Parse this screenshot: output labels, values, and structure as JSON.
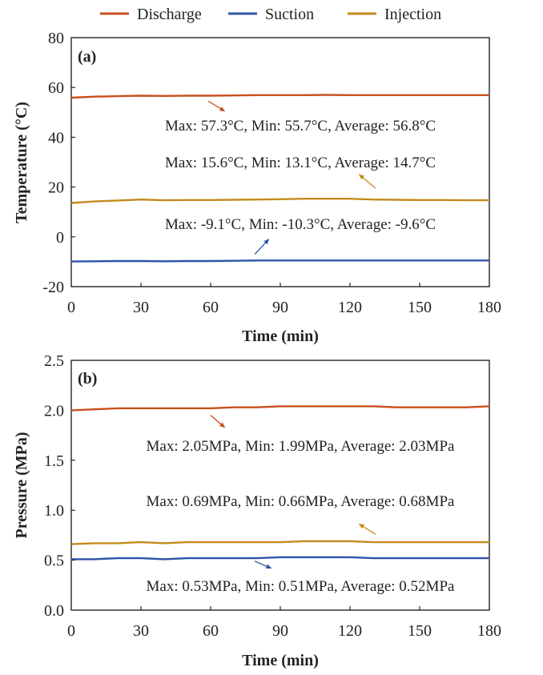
{
  "legend": {
    "placement": "top-center",
    "items": [
      {
        "label": "Discharge",
        "color": "#C8501E"
      },
      {
        "label": "Suction",
        "color": "#2E54A6"
      },
      {
        "label": "Injection",
        "color": "#C48A1C"
      }
    ]
  },
  "chart_data": [
    {
      "type": "line",
      "panel_label": "(a)",
      "xlabel": "Time (min)",
      "ylabel": "Temperature (°C)",
      "xlim": [
        0,
        180
      ],
      "ylim": [
        -20,
        80
      ],
      "xticks": [
        0,
        30,
        60,
        90,
        120,
        150,
        180
      ],
      "yticks": [
        -20,
        0,
        20,
        40,
        60,
        80
      ],
      "grid": false,
      "series": [
        {
          "name": "Discharge",
          "color": "#C8501E",
          "x": [
            0,
            10,
            20,
            30,
            40,
            50,
            60,
            70,
            80,
            90,
            100,
            110,
            120,
            130,
            140,
            150,
            160,
            170,
            180
          ],
          "y": [
            55.9,
            56.3,
            56.5,
            56.7,
            56.6,
            56.7,
            56.7,
            56.8,
            56.9,
            56.9,
            56.9,
            57.0,
            56.9,
            56.9,
            56.9,
            56.9,
            56.9,
            56.9,
            56.9
          ]
        },
        {
          "name": "Suction",
          "color": "#2E54A6",
          "x": [
            0,
            10,
            20,
            30,
            40,
            50,
            60,
            70,
            80,
            90,
            100,
            110,
            120,
            130,
            140,
            150,
            160,
            170,
            180
          ],
          "y": [
            -9.9,
            -9.8,
            -9.7,
            -9.7,
            -9.8,
            -9.7,
            -9.7,
            -9.6,
            -9.5,
            -9.5,
            -9.5,
            -9.5,
            -9.5,
            -9.5,
            -9.5,
            -9.5,
            -9.5,
            -9.5,
            -9.5
          ]
        },
        {
          "name": "Injection",
          "color": "#C48A1C",
          "x": [
            0,
            10,
            20,
            30,
            40,
            50,
            60,
            70,
            80,
            90,
            100,
            110,
            120,
            130,
            140,
            150,
            160,
            170,
            180
          ],
          "y": [
            13.6,
            14.2,
            14.6,
            15.0,
            14.7,
            14.8,
            14.8,
            14.9,
            15.0,
            15.1,
            15.3,
            15.3,
            15.3,
            15.0,
            14.9,
            14.8,
            14.8,
            14.7,
            14.7
          ]
        }
      ],
      "annotations": [
        {
          "text": "Max: 57.3°C, Min: 55.7°C, Average: 56.8°C",
          "series": "Discharge",
          "arrow_tip": [
            66,
            50.5
          ],
          "arrow_tail": [
            59,
            54.5
          ]
        },
        {
          "text": "Max: 15.6°C, Min: 13.1°C, Average: 14.7°C",
          "series": "Injection",
          "arrow_tip": [
            124,
            25
          ],
          "arrow_tail": [
            131,
            19.5
          ]
        },
        {
          "text": "Max: -9.1°C, Min: -10.3°C, Average: -9.6°C",
          "series": "Suction",
          "arrow_tip": [
            85,
            -1
          ],
          "arrow_tail": [
            79,
            -7
          ]
        }
      ]
    },
    {
      "type": "line",
      "panel_label": "(b)",
      "xlabel": "Time (min)",
      "ylabel": "Pressure (MPa)",
      "xlim": [
        0,
        180
      ],
      "ylim": [
        0.0,
        2.5
      ],
      "xticks": [
        0,
        30,
        60,
        90,
        120,
        150,
        180
      ],
      "yticks": [
        0.0,
        0.5,
        1.0,
        1.5,
        2.0,
        2.5
      ],
      "ytick_labels": [
        "0.0",
        "0.5",
        "1.0",
        "1.5",
        "2.0",
        "2.5"
      ],
      "grid": false,
      "series": [
        {
          "name": "Discharge",
          "color": "#C8501E",
          "x": [
            0,
            10,
            20,
            30,
            40,
            50,
            60,
            70,
            80,
            90,
            100,
            110,
            120,
            130,
            140,
            150,
            160,
            170,
            180
          ],
          "y": [
            2.0,
            2.01,
            2.02,
            2.02,
            2.02,
            2.02,
            2.02,
            2.03,
            2.03,
            2.04,
            2.04,
            2.04,
            2.04,
            2.04,
            2.03,
            2.03,
            2.03,
            2.03,
            2.04
          ]
        },
        {
          "name": "Suction",
          "color": "#2E54A6",
          "x": [
            0,
            10,
            20,
            30,
            40,
            50,
            60,
            70,
            80,
            90,
            100,
            110,
            120,
            130,
            140,
            150,
            160,
            170,
            180
          ],
          "y": [
            0.51,
            0.51,
            0.52,
            0.52,
            0.51,
            0.52,
            0.52,
            0.52,
            0.52,
            0.53,
            0.53,
            0.53,
            0.53,
            0.52,
            0.52,
            0.52,
            0.52,
            0.52,
            0.52
          ]
        },
        {
          "name": "Injection",
          "color": "#C48A1C",
          "x": [
            0,
            10,
            20,
            30,
            40,
            50,
            60,
            70,
            80,
            90,
            100,
            110,
            120,
            130,
            140,
            150,
            160,
            170,
            180
          ],
          "y": [
            0.66,
            0.67,
            0.67,
            0.68,
            0.67,
            0.68,
            0.68,
            0.68,
            0.68,
            0.68,
            0.69,
            0.69,
            0.69,
            0.68,
            0.68,
            0.68,
            0.68,
            0.68,
            0.68
          ]
        }
      ],
      "annotations": [
        {
          "text": "Max: 2.05MPa, Min: 1.99MPa, Average: 2.03MPa",
          "series": "Discharge",
          "arrow_tip": [
            66,
            1.83
          ],
          "arrow_tail": [
            60,
            1.95
          ]
        },
        {
          "text": "Max: 0.69MPa, Min: 0.66MPa, Average: 0.68MPa",
          "series": "Injection",
          "arrow_tip": [
            124,
            0.86
          ],
          "arrow_tail": [
            131,
            0.76
          ]
        },
        {
          "text": "Max: 0.53MPa, Min: 0.51MPa, Average: 0.52MPa",
          "series": "Suction",
          "arrow_tip": [
            86,
            0.42
          ],
          "arrow_tail": [
            79,
            0.49
          ]
        }
      ]
    }
  ]
}
